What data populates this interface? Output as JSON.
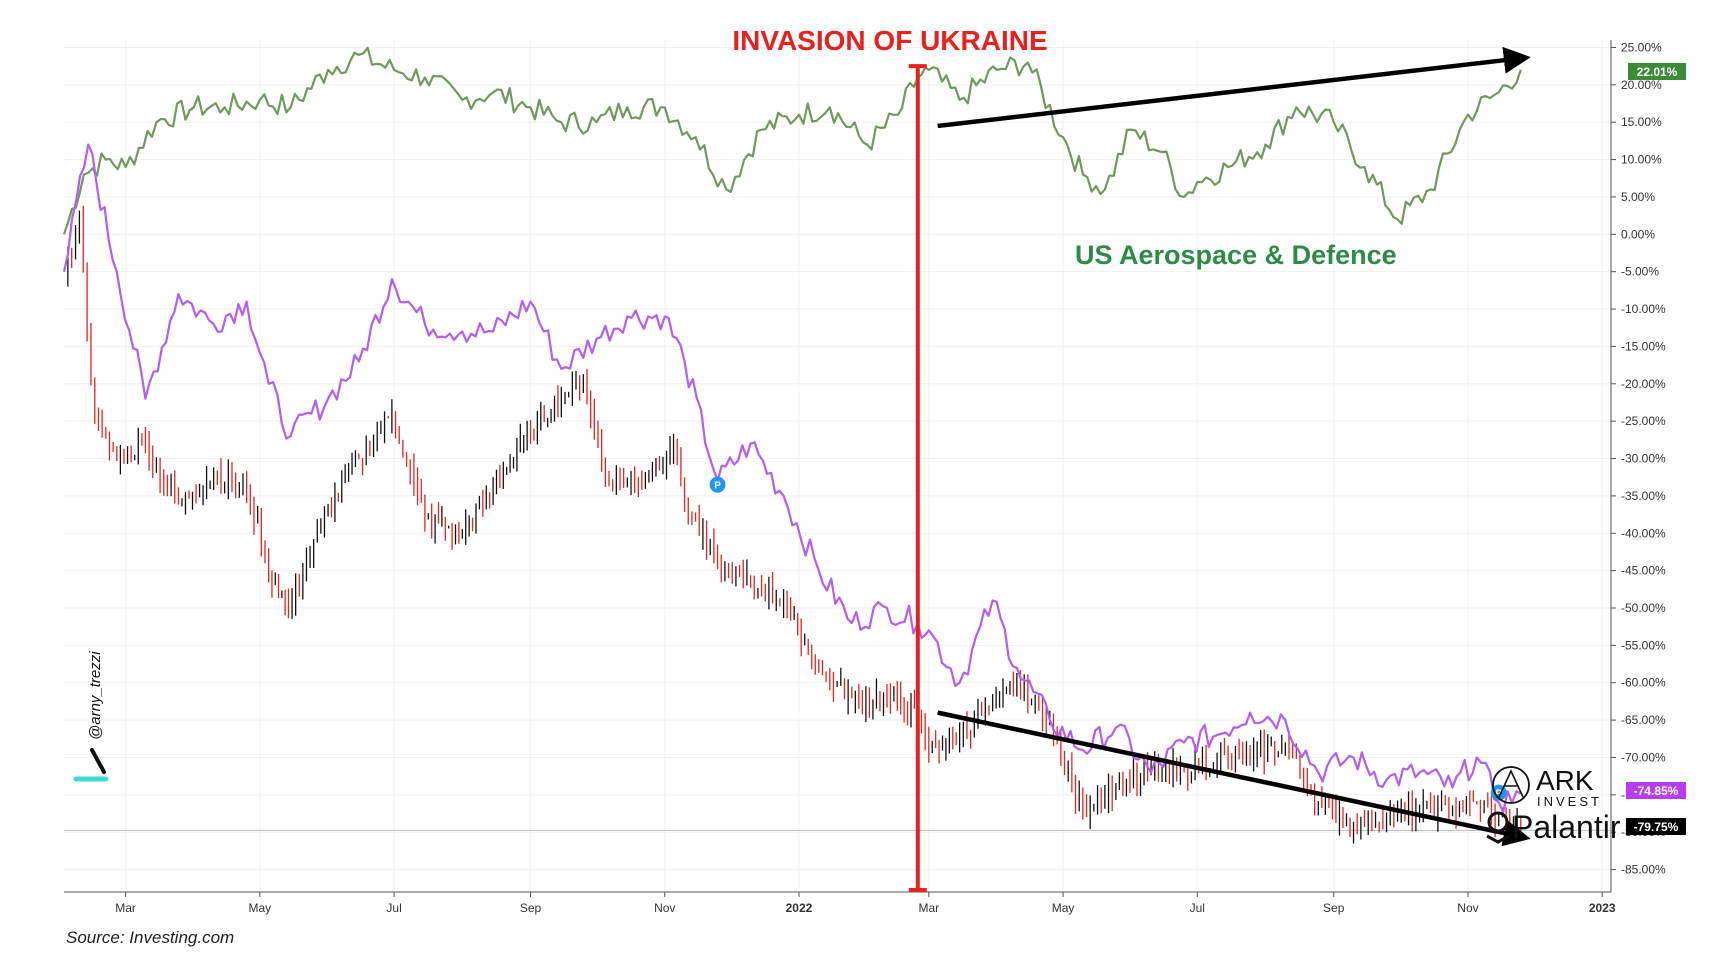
{
  "chart_data": {
    "type": "line",
    "title": "INVASION OF UKRAINE",
    "source": "Source: Investing.com",
    "watermark": "@arny_trezzi",
    "x_ticks": [
      "Mar",
      "May",
      "Jul",
      "Sep",
      "Nov",
      "2022",
      "Mar",
      "May",
      "Jul",
      "Sep",
      "Nov",
      "2023"
    ],
    "y_ticks": [
      "25.00%",
      "20.00%",
      "15.00%",
      "10.00%",
      "5.00%",
      "0.00%",
      "-5.00%",
      "-10.00%",
      "-15.00%",
      "-20.00%",
      "-25.00%",
      "-30.00%",
      "-35.00%",
      "-40.00%",
      "-45.00%",
      "-50.00%",
      "-55.00%",
      "-60.00%",
      "-65.00%",
      "-70.00%",
      "-75.00%",
      "-80.00%",
      "-85.00%"
    ],
    "ylim": [
      -88,
      26
    ],
    "series_labels": {
      "defence": "US Aerospace & Defence",
      "ark_line1": "ARK",
      "ark_line2": "INVEST",
      "palantir": "Palantir"
    },
    "end_badges": {
      "defence": "22.01%",
      "ark": "-74.85%",
      "palantir": "-79.75%"
    },
    "colors": {
      "defence": "#6f9a5c",
      "ark": "#b35ef2",
      "palantir_up": "#111111",
      "palantir_down": "#e0261f",
      "invasion_marker": "#e8211f",
      "badge_defence": "#3d8b37",
      "badge_ark": "#b43ef0",
      "badge_palantir": "#000000",
      "event_marker": "#2196f3"
    },
    "series": [
      {
        "key": "defence",
        "x": [
          "2021-02-01",
          "2021-02-10",
          "2021-02-20",
          "2021-03-01",
          "2021-03-15",
          "2021-04-01",
          "2021-04-15",
          "2021-05-01",
          "2021-05-15",
          "2021-06-01",
          "2021-06-15",
          "2021-07-01",
          "2021-07-15",
          "2021-08-01",
          "2021-08-15",
          "2021-09-01",
          "2021-09-15",
          "2021-10-01",
          "2021-10-15",
          "2021-11-01",
          "2021-11-15",
          "2021-11-29",
          "2021-12-15",
          "2022-01-01",
          "2022-01-15",
          "2022-02-01",
          "2022-02-15",
          "2022-02-24",
          "2022-03-01",
          "2022-03-15",
          "2022-04-01",
          "2022-04-15",
          "2022-05-01",
          "2022-05-10",
          "2022-05-20",
          "2022-06-01",
          "2022-06-15",
          "2022-06-25",
          "2022-07-01",
          "2022-07-15",
          "2022-08-01",
          "2022-08-15",
          "2022-09-01",
          "2022-09-15",
          "2022-09-30",
          "2022-10-15",
          "2022-11-01",
          "2022-11-15",
          "2022-11-25"
        ],
        "values": [
          0,
          8,
          10,
          9,
          15,
          17,
          17,
          18,
          17,
          22,
          24,
          22,
          21,
          18,
          19,
          17,
          15,
          15,
          17,
          17,
          13,
          6,
          14,
          16,
          17,
          12,
          16,
          21,
          22,
          18,
          22,
          23,
          13,
          8,
          6,
          14,
          11,
          5,
          7,
          9,
          12,
          17,
          15,
          9,
          2,
          6,
          16,
          19,
          22.01
        ]
      },
      {
        "key": "ark",
        "x": [
          "2021-02-01",
          "2021-02-12",
          "2021-02-25",
          "2021-03-10",
          "2021-03-25",
          "2021-04-10",
          "2021-04-25",
          "2021-05-05",
          "2021-05-15",
          "2021-06-01",
          "2021-06-15",
          "2021-06-30",
          "2021-07-15",
          "2021-08-01",
          "2021-08-15",
          "2021-09-01",
          "2021-09-15",
          "2021-10-01",
          "2021-10-15",
          "2021-11-01",
          "2021-11-10",
          "2021-11-25",
          "2021-12-10",
          "2021-12-25",
          "2022-01-10",
          "2022-01-25",
          "2022-02-10",
          "2022-02-24",
          "2022-03-01",
          "2022-03-15",
          "2022-03-30",
          "2022-04-10",
          "2022-04-25",
          "2022-05-10",
          "2022-05-25",
          "2022-06-10",
          "2022-06-25",
          "2022-07-10",
          "2022-07-25",
          "2022-08-10",
          "2022-08-25",
          "2022-09-10",
          "2022-09-25",
          "2022-10-10",
          "2022-10-25",
          "2022-11-05",
          "2022-11-15",
          "2022-11-25"
        ],
        "values": [
          -5,
          12,
          -5,
          -22,
          -8,
          -12,
          -9,
          -20,
          -27,
          -22,
          -17,
          -6,
          -12,
          -13,
          -13,
          -9,
          -18,
          -14,
          -11,
          -11,
          -17,
          -33,
          -28,
          -35,
          -45,
          -52,
          -50,
          -52,
          -53,
          -60,
          -49,
          -58,
          -65,
          -69,
          -66,
          -72,
          -68,
          -67,
          -64,
          -65,
          -72,
          -70,
          -73,
          -72,
          -74,
          -70,
          -76,
          -74.85
        ]
      }
    ],
    "palantir_path": {
      "x": [
        "2021-02-01",
        "2021-02-08",
        "2021-02-15",
        "2021-02-25",
        "2021-03-10",
        "2021-03-25",
        "2021-04-10",
        "2021-04-25",
        "2021-05-05",
        "2021-05-14",
        "2021-06-01",
        "2021-06-15",
        "2021-06-30",
        "2021-07-15",
        "2021-08-01",
        "2021-08-15",
        "2021-09-01",
        "2021-09-15",
        "2021-09-25",
        "2021-10-05",
        "2021-10-20",
        "2021-11-05",
        "2021-11-10",
        "2021-11-25",
        "2021-12-10",
        "2021-12-25",
        "2022-01-10",
        "2022-01-25",
        "2022-02-10",
        "2022-02-24",
        "2022-03-01",
        "2022-03-15",
        "2022-03-30",
        "2022-04-10",
        "2022-04-25",
        "2022-05-05",
        "2022-05-10",
        "2022-05-25",
        "2022-06-10",
        "2022-06-25",
        "2022-07-10",
        "2022-07-25",
        "2022-08-10",
        "2022-08-25",
        "2022-09-10",
        "2022-09-25",
        "2022-10-10",
        "2022-10-25",
        "2022-11-05",
        "2022-11-15",
        "2022-11-25"
      ],
      "values": [
        -5,
        2,
        -25,
        -30,
        -28,
        -36,
        -32,
        -34,
        -45,
        -50,
        -37,
        -30,
        -24,
        -38,
        -40,
        -34,
        -26,
        -22,
        -19,
        -33,
        -33,
        -28,
        -36,
        -44,
        -47,
        -49,
        -58,
        -62,
        -62,
        -64,
        -69,
        -67,
        -63,
        -60,
        -65,
        -74,
        -77,
        -74,
        -72,
        -72,
        -70,
        -70,
        -68,
        -76,
        -79,
        -78,
        -77,
        -77,
        -76,
        -78,
        -79.75
      ]
    },
    "invasion_date": "2022-02-24",
    "trend_arrows": {
      "defence": {
        "x": [
          "2022-03-05",
          "2022-11-28"
        ],
        "y": [
          14.5,
          23.5
        ]
      },
      "palantir": {
        "x": [
          "2022-03-05",
          "2022-11-28"
        ],
        "y": [
          -64,
          -80.5
        ]
      }
    }
  }
}
